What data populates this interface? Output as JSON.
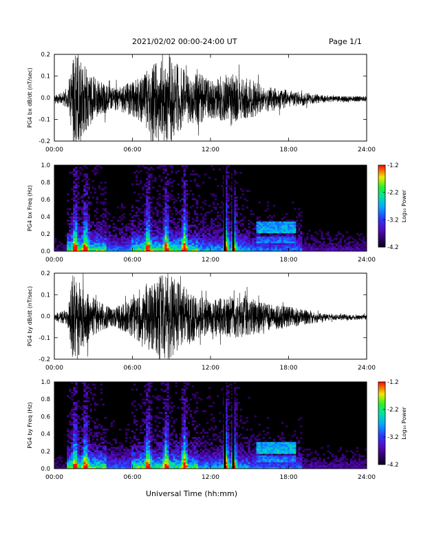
{
  "header": {
    "title": "2021/02/02  00:00-24:00 UT",
    "page_label": "Page 1/1"
  },
  "footer": {
    "xlabel": "Universal Time (hh:mm)"
  },
  "chart_data": [
    {
      "type": "line",
      "id": "bx-waveform",
      "ylabel": "PG4 bx dB/dt (nT/sec)",
      "xlim": [
        0,
        24
      ],
      "ylim": [
        -0.2,
        0.2
      ],
      "x_ticks": [
        "00:00",
        "06:00",
        "12:00",
        "18:00",
        "24:00"
      ],
      "y_ticks": [
        "-0.2",
        "-0.1",
        "0.0",
        "0.1",
        "0.2"
      ],
      "series": [
        {
          "values": [
            {
              "t": 0.0,
              "amp": 0.015
            },
            {
              "t": 1.0,
              "amp": 0.04
            },
            {
              "t": 1.4,
              "amp": 0.2
            },
            {
              "t": 1.8,
              "amp": 0.2
            },
            {
              "t": 2.5,
              "amp": 0.14
            },
            {
              "t": 3.2,
              "amp": 0.09
            },
            {
              "t": 4.5,
              "amp": 0.05
            },
            {
              "t": 6.0,
              "amp": 0.08
            },
            {
              "t": 7.0,
              "amp": 0.13
            },
            {
              "t": 8.0,
              "amp": 0.2
            },
            {
              "t": 8.8,
              "amp": 0.2
            },
            {
              "t": 9.8,
              "amp": 0.14
            },
            {
              "t": 11.0,
              "amp": 0.12
            },
            {
              "t": 12.0,
              "amp": 0.09
            },
            {
              "t": 13.5,
              "amp": 0.12
            },
            {
              "t": 15.0,
              "amp": 0.09
            },
            {
              "t": 16.5,
              "amp": 0.06
            },
            {
              "t": 18.0,
              "amp": 0.04
            },
            {
              "t": 21.0,
              "amp": 0.015
            },
            {
              "t": 24.0,
              "amp": 0.012
            }
          ]
        }
      ]
    },
    {
      "type": "heatmap",
      "id": "bx-spectrogram",
      "ylabel": "PG4 bx Freq (Hz)",
      "xlim": [
        0,
        24
      ],
      "ylim": [
        0.0,
        1.0
      ],
      "x_ticks": [
        "00:00",
        "06:00",
        "12:00",
        "18:00",
        "24:00"
      ],
      "y_ticks": [
        "0.0",
        "0.2",
        "0.4",
        "0.6",
        "0.8",
        "1.0"
      ],
      "colorbar": {
        "label": "Log₁₀ Power",
        "ticks": [
          "-1.2",
          "-2.2",
          "-3.2",
          "-4.2"
        ],
        "range": [
          -4.2,
          -1.2
        ]
      },
      "bright_bursts_hours": [
        1.6,
        2.4,
        7.2,
        8.6,
        10.0,
        13.2,
        13.8
      ],
      "dark_gaps_hours": [
        13.1,
        13.75
      ],
      "pc_band": {
        "start": 15.5,
        "end": 18.5,
        "freq": 0.28
      }
    },
    {
      "type": "line",
      "id": "by-waveform",
      "ylabel": "PG4 by dB/dt (nT/sec)",
      "xlim": [
        0,
        24
      ],
      "ylim": [
        -0.2,
        0.2
      ],
      "x_ticks": [
        "00:00",
        "06:00",
        "12:00",
        "18:00",
        "24:00"
      ],
      "y_ticks": [
        "-0.2",
        "-0.1",
        "0.0",
        "0.1",
        "0.2"
      ],
      "series": [
        {
          "values": [
            {
              "t": 0.0,
              "amp": 0.015
            },
            {
              "t": 1.0,
              "amp": 0.04
            },
            {
              "t": 1.4,
              "amp": 0.2
            },
            {
              "t": 1.8,
              "amp": 0.2
            },
            {
              "t": 2.5,
              "amp": 0.12
            },
            {
              "t": 3.2,
              "amp": 0.08
            },
            {
              "t": 4.5,
              "amp": 0.04
            },
            {
              "t": 6.0,
              "amp": 0.09
            },
            {
              "t": 7.0,
              "amp": 0.14
            },
            {
              "t": 8.0,
              "amp": 0.2
            },
            {
              "t": 8.8,
              "amp": 0.2
            },
            {
              "t": 9.8,
              "amp": 0.15
            },
            {
              "t": 11.0,
              "amp": 0.1
            },
            {
              "t": 12.0,
              "amp": 0.08
            },
            {
              "t": 13.5,
              "amp": 0.1
            },
            {
              "t": 15.0,
              "amp": 0.09
            },
            {
              "t": 16.5,
              "amp": 0.06
            },
            {
              "t": 18.0,
              "amp": 0.05
            },
            {
              "t": 21.0,
              "amp": 0.015
            },
            {
              "t": 24.0,
              "amp": 0.012
            }
          ]
        }
      ]
    },
    {
      "type": "heatmap",
      "id": "by-spectrogram",
      "ylabel": "PG4 by Freq (Hz)",
      "xlim": [
        0,
        24
      ],
      "ylim": [
        0.0,
        1.0
      ],
      "x_ticks": [
        "00:00",
        "06:00",
        "12:00",
        "18:00",
        "24:00"
      ],
      "y_ticks": [
        "0.0",
        "0.2",
        "0.4",
        "0.6",
        "0.8",
        "1.0"
      ],
      "colorbar": {
        "label": "Log₁₀ Power",
        "ticks": [
          "-1.2",
          "-2.2",
          "-3.2",
          "-4.2"
        ],
        "range": [
          -4.2,
          -1.2
        ]
      },
      "bright_bursts_hours": [
        1.6,
        2.4,
        7.2,
        8.6,
        10.0,
        13.2,
        13.8
      ],
      "dark_gaps_hours": [
        13.1,
        13.75
      ],
      "pc_band": {
        "start": 15.5,
        "end": 18.5,
        "freq": 0.24
      }
    }
  ]
}
